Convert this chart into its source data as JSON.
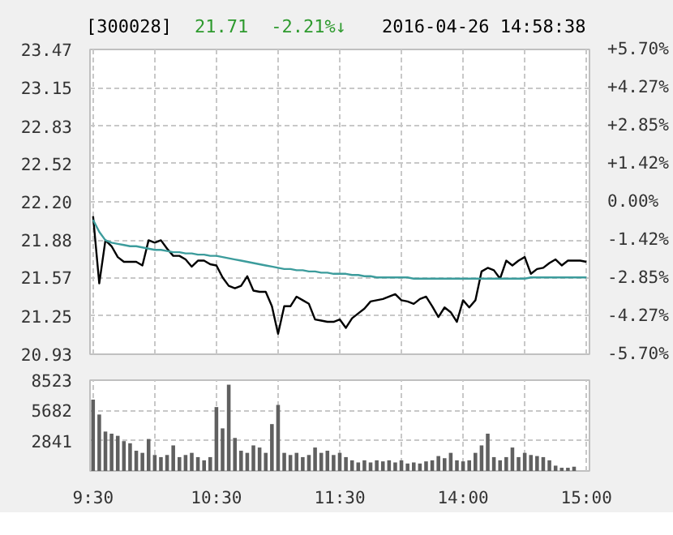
{
  "chart_data": [
    {
      "type": "line",
      "title": "[300028]",
      "annotations": [
        "21.71",
        "-2.21%↓",
        "2016-04-26 14:58:38"
      ],
      "categories": [
        null,
        null,
        null,
        null,
        null,
        null,
        null,
        null,
        null,
        null,
        null,
        null,
        null,
        null,
        null,
        null,
        null,
        null,
        null,
        null,
        null,
        null,
        null,
        null,
        null,
        null,
        null,
        null,
        null,
        null,
        null,
        null,
        null,
        null,
        null,
        null,
        null,
        null,
        null,
        null,
        null,
        null,
        null,
        null,
        null,
        null,
        null,
        null,
        null,
        null,
        null,
        null,
        null,
        null,
        null,
        null,
        null,
        null,
        null,
        null,
        null,
        null,
        null,
        null,
        null,
        null,
        null,
        null,
        null,
        null,
        null,
        null,
        null,
        null,
        null,
        null,
        null,
        null,
        null,
        null,
        null
      ],
      "ylim": [
        20.93,
        23.47
      ],
      "yticks": [
        {
          "value": 20.93,
          "label": "20.93"
        },
        {
          "value": 21.25,
          "label": "21.25"
        },
        {
          "value": 21.57,
          "label": "21.57"
        },
        {
          "value": 21.88,
          "label": "21.88"
        },
        {
          "value": 22.2,
          "label": "22.20"
        },
        {
          "value": 22.52,
          "label": "22.52"
        },
        {
          "value": 22.83,
          "label": "22.83"
        },
        {
          "value": 23.15,
          "label": "23.15"
        },
        {
          "value": 23.47,
          "label": "23.47"
        }
      ],
      "y2lim": [
        -5.7,
        5.7
      ],
      "y2ticks": [
        {
          "value": -5.7,
          "label": "-5.70%"
        },
        {
          "value": -4.27,
          "label": "-4.27%"
        },
        {
          "value": -2.85,
          "label": "-2.85%"
        },
        {
          "value": -1.42,
          "label": "-1.42%"
        },
        {
          "value": 0,
          "label": "0.00%"
        },
        {
          "value": 1.42,
          "label": "+1.42%"
        },
        {
          "value": 2.85,
          "label": "+2.85%"
        },
        {
          "value": 4.27,
          "label": "+4.27%"
        },
        {
          "value": 5.7,
          "label": "+5.70%"
        }
      ],
      "grid": true,
      "series": [
        {
          "color": "#000000",
          "values": [
            22.08,
            21.52,
            21.88,
            21.83,
            21.74,
            21.7,
            21.7,
            21.7,
            21.67,
            21.88,
            21.86,
            21.88,
            21.81,
            21.75,
            21.75,
            21.72,
            21.66,
            21.71,
            21.71,
            21.68,
            21.67,
            21.57,
            21.5,
            21.48,
            21.5,
            21.58,
            21.46,
            21.45,
            21.45,
            21.33,
            21.1,
            21.33,
            21.33,
            21.41,
            21.38,
            21.35,
            21.22,
            21.21,
            21.2,
            21.2,
            21.22,
            21.15,
            21.23,
            21.27,
            21.31,
            21.37,
            21.38,
            21.39,
            21.41,
            21.43,
            21.38,
            21.37,
            21.35,
            21.39,
            21.41,
            21.33,
            21.24,
            21.32,
            21.28,
            21.2,
            21.38,
            21.32,
            21.38,
            21.62,
            21.65,
            21.63,
            21.56,
            21.71,
            21.67,
            21.71,
            21.74,
            21.6,
            21.64,
            21.65,
            21.69,
            21.72,
            21.67,
            21.71,
            21.71,
            21.71,
            21.7
          ]
        },
        {
          "color": "#3c9c9c",
          "values": [
            22.05,
            21.95,
            21.88,
            21.86,
            21.85,
            21.84,
            21.83,
            21.83,
            21.82,
            21.81,
            21.8,
            21.8,
            21.79,
            21.78,
            21.78,
            21.77,
            21.77,
            21.76,
            21.76,
            21.75,
            21.75,
            21.74,
            21.73,
            21.72,
            21.71,
            21.7,
            21.69,
            21.68,
            21.67,
            21.66,
            21.65,
            21.64,
            21.64,
            21.63,
            21.63,
            21.62,
            21.62,
            21.61,
            21.61,
            21.6,
            21.6,
            21.6,
            21.59,
            21.59,
            21.58,
            21.58,
            21.57,
            21.57,
            21.57,
            21.57,
            21.57,
            21.57,
            21.56,
            21.56,
            21.56,
            21.56,
            21.56,
            21.56,
            21.56,
            21.56,
            21.56,
            21.56,
            21.56,
            21.56,
            21.56,
            21.56,
            21.56,
            21.56,
            21.56,
            21.56,
            21.56,
            21.57,
            21.57,
            21.57,
            21.57,
            21.57,
            21.57,
            21.57,
            21.57,
            21.57,
            21.57
          ]
        }
      ]
    },
    {
      "type": "bar",
      "color": "#606060",
      "categories": [
        "9:30",
        null,
        null,
        null,
        null,
        null,
        null,
        null,
        null,
        null,
        null,
        null,
        null,
        null,
        null,
        null,
        null,
        null,
        null,
        null,
        "10:30",
        null,
        null,
        null,
        null,
        null,
        null,
        null,
        null,
        null,
        null,
        null,
        null,
        null,
        null,
        null,
        null,
        null,
        null,
        null,
        "11:30",
        null,
        null,
        null,
        null,
        null,
        null,
        null,
        null,
        null,
        null,
        null,
        null,
        null,
        null,
        null,
        null,
        null,
        null,
        null,
        "14:00",
        null,
        null,
        null,
        null,
        null,
        null,
        null,
        null,
        null,
        null,
        null,
        null,
        null,
        null,
        null,
        null,
        null,
        null,
        null,
        "15:00"
      ],
      "values": [
        6700,
        5300,
        3700,
        3500,
        3300,
        2800,
        2600,
        1900,
        1700,
        3000,
        1500,
        1300,
        1500,
        2400,
        1300,
        1500,
        1700,
        1300,
        1000,
        1300,
        6000,
        4000,
        8100,
        3100,
        1900,
        1700,
        2400,
        2200,
        1700,
        4400,
        6200,
        1700,
        1500,
        1700,
        1300,
        1500,
        2200,
        1700,
        1900,
        1500,
        1700,
        1300,
        1000,
        800,
        1000,
        800,
        1000,
        900,
        1000,
        800,
        1000,
        700,
        800,
        700,
        900,
        1000,
        1400,
        1200,
        1700,
        1000,
        900,
        1000,
        1700,
        2400,
        3500,
        1300,
        1000,
        1300,
        2200,
        1300,
        1700,
        1500,
        1400,
        1300,
        1000,
        500,
        300,
        300,
        400,
        null,
        null
      ],
      "ylim": [
        0,
        8523
      ],
      "yticks": [
        {
          "value": 0,
          "label": null
        },
        2841,
        5682,
        8523
      ],
      "grid": true
    }
  ]
}
